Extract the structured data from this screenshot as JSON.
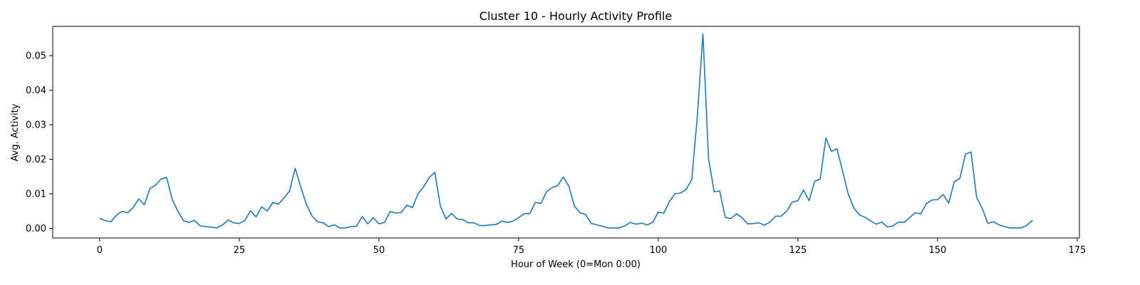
{
  "chart_data": {
    "type": "line",
    "title": "Cluster 10 - Hourly Activity Profile",
    "xlabel": "Hour of Week (0=Mon 0:00)",
    "ylabel": "Avg. Activity",
    "xlim": [
      -8.4,
      175.4
    ],
    "ylim": [
      -0.0028,
      0.0585
    ],
    "xticks": [
      0,
      25,
      50,
      75,
      100,
      125,
      150,
      175
    ],
    "xtick_labels": [
      "0",
      "25",
      "50",
      "75",
      "100",
      "125",
      "150",
      "175"
    ],
    "yticks": [
      0.0,
      0.01,
      0.02,
      0.03,
      0.04,
      0.05
    ],
    "ytick_labels": [
      "0.00",
      "0.01",
      "0.02",
      "0.03",
      "0.04",
      "0.05"
    ],
    "grid": false,
    "line_color": "#1f77b4",
    "series": [
      {
        "x": [
          0,
          1,
          2,
          3,
          4,
          5,
          6,
          7,
          8,
          9,
          10,
          11,
          12,
          13,
          14,
          15,
          16,
          17,
          18,
          19,
          20,
          21,
          22,
          23,
          24,
          25,
          26,
          27,
          28,
          29,
          30,
          31,
          32,
          33,
          34,
          35,
          36,
          37,
          38,
          39,
          40,
          41,
          42,
          43,
          44,
          45,
          46,
          47,
          48,
          49,
          50,
          51,
          52,
          53,
          54,
          55,
          56,
          57,
          58,
          59,
          60,
          61,
          62,
          63,
          64,
          65,
          66,
          67,
          68,
          69,
          70,
          71,
          72,
          73,
          74,
          75,
          76,
          77,
          78,
          79,
          80,
          81,
          82,
          83,
          84,
          85,
          86,
          87,
          88,
          89,
          90,
          91,
          92,
          93,
          94,
          95,
          96,
          97,
          98,
          99,
          100,
          101,
          102,
          103,
          104,
          105,
          106,
          107,
          108,
          109,
          110,
          111,
          112,
          113,
          114,
          115,
          116,
          117,
          118,
          119,
          120,
          121,
          122,
          123,
          124,
          125,
          126,
          127,
          128,
          129,
          130,
          131,
          132,
          133,
          134,
          135,
          136,
          137,
          138,
          139,
          140,
          141,
          142,
          143,
          144,
          145,
          146,
          147,
          148,
          149,
          150,
          151,
          152,
          153,
          154,
          155,
          156,
          157,
          158,
          159,
          160,
          161,
          162,
          163,
          164,
          165,
          166,
          167
        ],
        "values": [
          0.0029,
          0.0022,
          0.0019,
          0.0038,
          0.0049,
          0.0045,
          0.006,
          0.0085,
          0.0068,
          0.0115,
          0.0125,
          0.0143,
          0.0147,
          0.0083,
          0.005,
          0.0022,
          0.0017,
          0.0023,
          0.0007,
          0.0005,
          0.0003,
          0.0001,
          0.001,
          0.0024,
          0.0016,
          0.0014,
          0.0023,
          0.0051,
          0.0033,
          0.0062,
          0.005,
          0.0075,
          0.007,
          0.0088,
          0.0108,
          0.0174,
          0.012,
          0.007,
          0.0036,
          0.0019,
          0.0016,
          0.0005,
          0.001,
          0.0001,
          0.0001,
          0.0005,
          0.0006,
          0.0034,
          0.0013,
          0.0031,
          0.0013,
          0.0017,
          0.0049,
          0.0044,
          0.0046,
          0.0067,
          0.006,
          0.01,
          0.012,
          0.0147,
          0.0162,
          0.0064,
          0.0027,
          0.0043,
          0.0027,
          0.0025,
          0.0016,
          0.0016,
          0.0008,
          0.0008,
          0.001,
          0.0011,
          0.0021,
          0.0017,
          0.0021,
          0.0031,
          0.0042,
          0.0043,
          0.0075,
          0.0072,
          0.0106,
          0.0118,
          0.0124,
          0.0149,
          0.0122,
          0.0064,
          0.0045,
          0.004,
          0.0014,
          0.001,
          0.0006,
          0.0001,
          0.0001,
          0.0001,
          0.0007,
          0.0017,
          0.0012,
          0.0015,
          0.001,
          0.0017,
          0.0047,
          0.0044,
          0.0078,
          0.01,
          0.0102,
          0.0113,
          0.0141,
          0.0325,
          0.0563,
          0.0203,
          0.0106,
          0.0108,
          0.0032,
          0.0028,
          0.0042,
          0.0031,
          0.0013,
          0.0014,
          0.0016,
          0.0009,
          0.0018,
          0.0035,
          0.0035,
          0.005,
          0.0076,
          0.008,
          0.0111,
          0.008,
          0.0136,
          0.0143,
          0.0261,
          0.0223,
          0.023,
          0.0166,
          0.01,
          0.0059,
          0.0039,
          0.0032,
          0.0022,
          0.0012,
          0.0018,
          0.0004,
          0.0007,
          0.0018,
          0.0017,
          0.0031,
          0.0045,
          0.0042,
          0.0071,
          0.0082,
          0.0083,
          0.0098,
          0.0073,
          0.0135,
          0.0145,
          0.0215,
          0.0221,
          0.0089,
          0.0058,
          0.0014,
          0.0019,
          0.001,
          0.0005,
          0.0001,
          0.0001,
          0.0001,
          0.0009,
          0.0023
        ]
      }
    ]
  }
}
